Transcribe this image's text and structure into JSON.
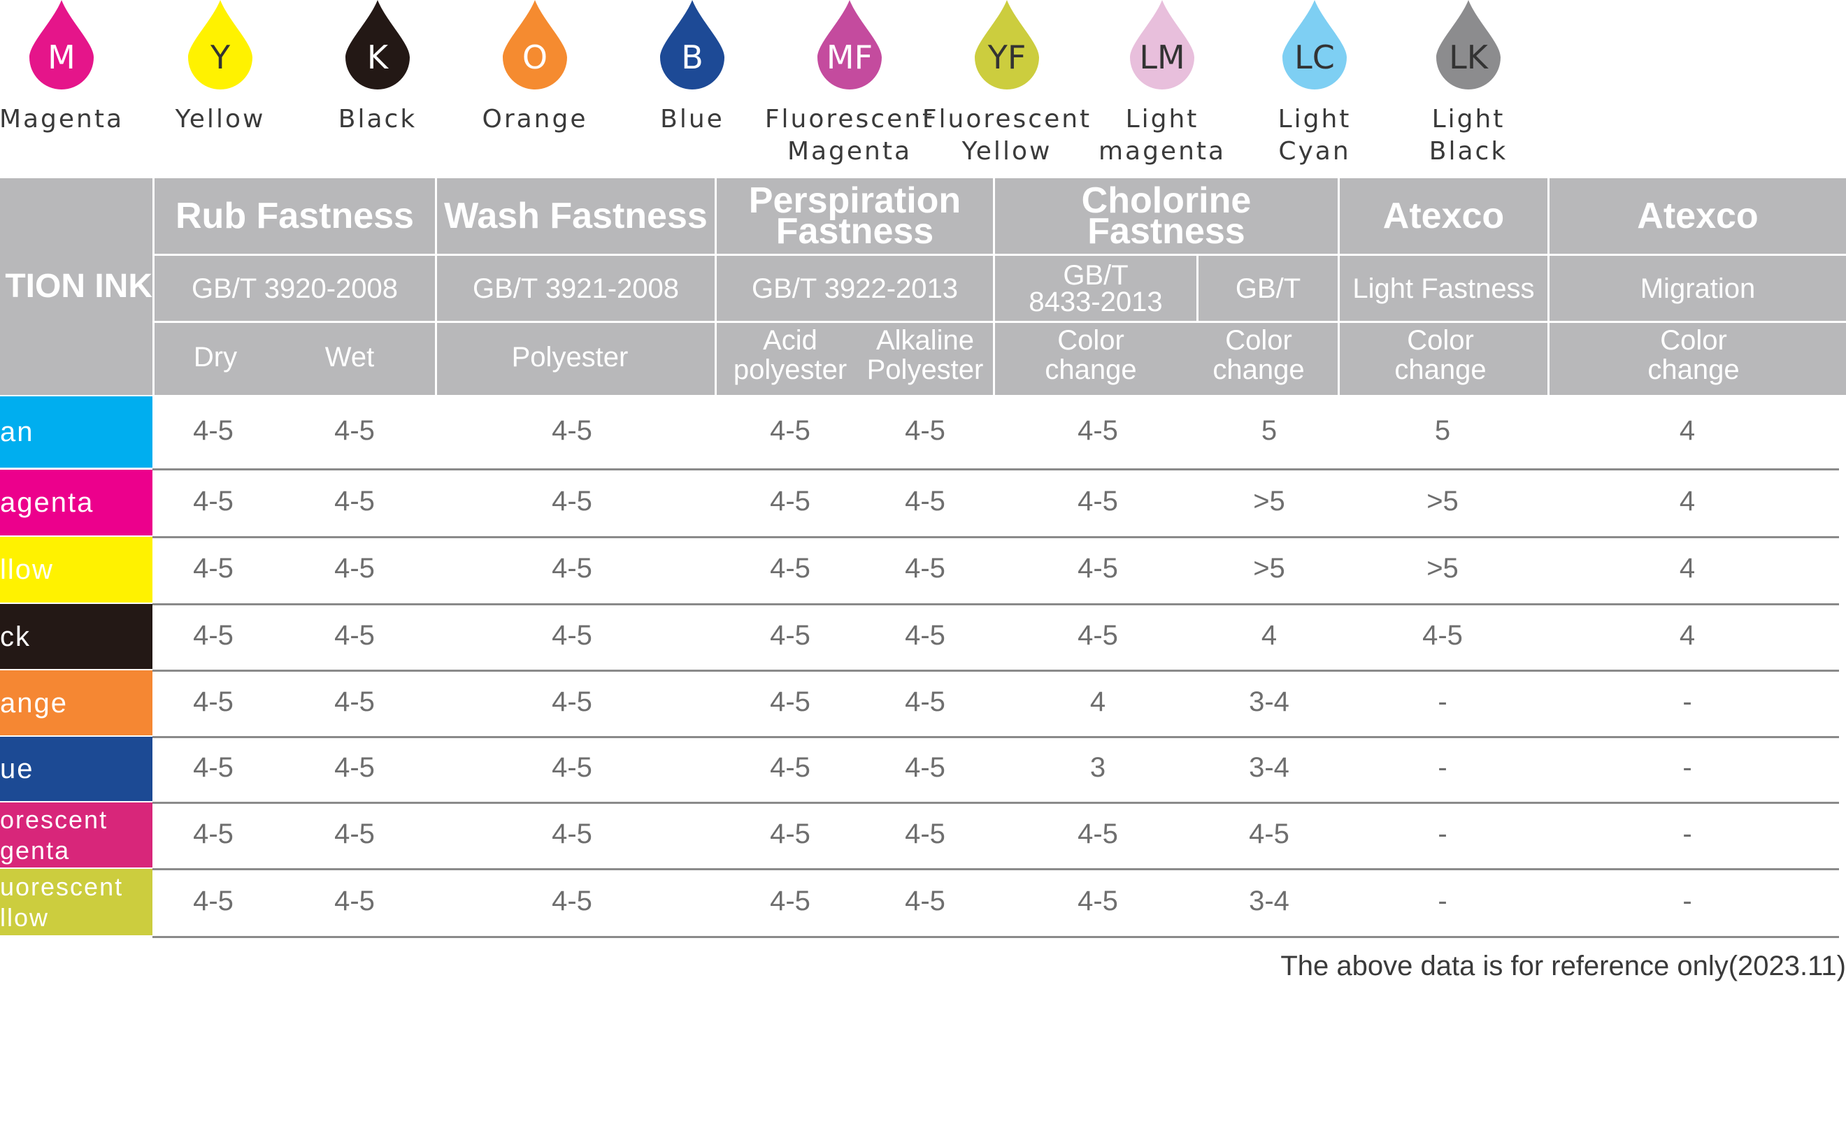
{
  "inks": [
    {
      "code": "M",
      "name": "Magenta",
      "color": "#e5158a",
      "text_color": "#ffffff"
    },
    {
      "code": "Y",
      "name": "Yellow",
      "color": "#fff200",
      "text_color": "#333333"
    },
    {
      "code": "K",
      "name": "Black",
      "color": "#231815",
      "text_color": "#ffffff"
    },
    {
      "code": "O",
      "name": "Orange",
      "color": "#f58b30",
      "text_color": "#ffffff"
    },
    {
      "code": "B",
      "name": "Blue",
      "color": "#1d4a96",
      "text_color": "#ffffff"
    },
    {
      "code": "MF",
      "name": "Fluorescent\nMagenta",
      "color": "#c44b9e",
      "text_color": "#ffffff"
    },
    {
      "code": "YF",
      "name": "Fluorescent\nYellow",
      "color": "#cccd3e",
      "text_color": "#333333"
    },
    {
      "code": "LM",
      "name": "Light\nmagenta",
      "color": "#e8bfdc",
      "text_color": "#333333"
    },
    {
      "code": "LC",
      "name": "Light\nCyan",
      "color": "#7ecff3",
      "text_color": "#333333"
    },
    {
      "code": "LK",
      "name": "Light\nBlack",
      "color": "#8c8c8e",
      "text_color": "#333333"
    }
  ],
  "table": {
    "corner_label": "TION INK",
    "groups": [
      {
        "title": "Rub Fastness",
        "standard": "GB/T 3920-2008"
      },
      {
        "title": "Wash Fastness",
        "standard": "GB/T 3921-2008"
      },
      {
        "title": "Perspiration\nFastness",
        "standard": "GB/T 3922-2013"
      },
      {
        "title": "Cholorine\nFastness",
        "standard": "GB/T\n8433-2013",
        "standard2": "GB/T"
      },
      {
        "title": "Atexco",
        "standard": "Light Fastness"
      },
      {
        "title": "Atexco",
        "standard": "Migration"
      }
    ],
    "sub_headers": [
      "Dry",
      "Wet",
      "Polyester",
      "Acid\npolyester",
      "Alkaline\nPolyester",
      "Color\nchange",
      "Color\nchange",
      "Color\nchange",
      "Color\nchange"
    ],
    "rows": [
      {
        "ink": "an",
        "color": "#00aeef",
        "values": [
          "4-5",
          "4-5",
          "4-5",
          "4-5",
          "4-5",
          "4-5",
          "5",
          "5",
          "4"
        ]
      },
      {
        "ink": "agenta",
        "color": "#ec008c",
        "values": [
          "4-5",
          "4-5",
          "4-5",
          "4-5",
          "4-5",
          "4-5",
          ">5",
          ">5",
          "4"
        ]
      },
      {
        "ink": "llow",
        "color": "#fff200",
        "values": [
          "4-5",
          "4-5",
          "4-5",
          "4-5",
          "4-5",
          "4-5",
          ">5",
          ">5",
          "4"
        ]
      },
      {
        "ink": "ck",
        "color": "#231815",
        "values": [
          "4-5",
          "4-5",
          "4-5",
          "4-5",
          "4-5",
          "4-5",
          "4",
          "4-5",
          "4"
        ]
      },
      {
        "ink": "ange",
        "color": "#f58733",
        "values": [
          "4-5",
          "4-5",
          "4-5",
          "4-5",
          "4-5",
          "4",
          "3-4",
          "-",
          "-"
        ]
      },
      {
        "ink": "ue",
        "color": "#1c4a94",
        "values": [
          "4-5",
          "4-5",
          "4-5",
          "4-5",
          "4-5",
          "3",
          "3-4",
          "-",
          "-"
        ]
      },
      {
        "ink": "orescent\ngenta",
        "color": "#d8267a",
        "values": [
          "4-5",
          "4-5",
          "4-5",
          "4-5",
          "4-5",
          "4-5",
          "4-5",
          "-",
          "-"
        ]
      },
      {
        "ink": "uorescent\nllow",
        "color": "#cccd3e",
        "values": [
          "4-5",
          "4-5",
          "4-5",
          "4-5",
          "4-5",
          "4-5",
          "3-4",
          "-",
          "-"
        ]
      }
    ]
  },
  "footnote": "The above data is for reference only(2023.11)"
}
